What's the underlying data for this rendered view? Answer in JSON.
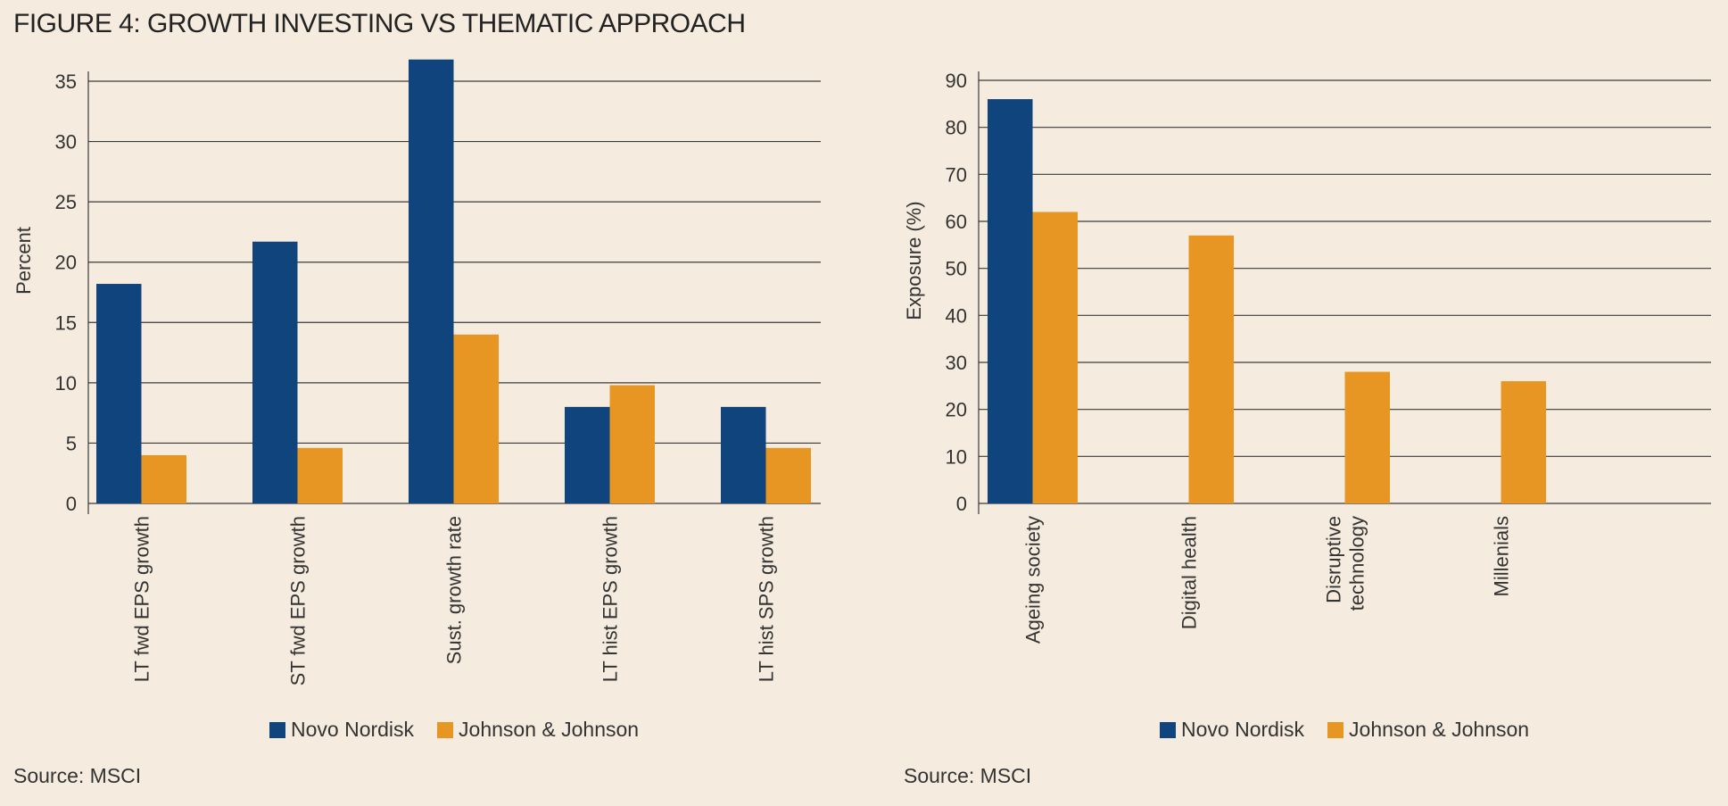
{
  "title": "FIGURE 4: GROWTH INVESTING VS THEMATIC APPROACH",
  "colors": {
    "novo": "#0F457C",
    "jnj": "#E89623",
    "grid": "#3a3a3a",
    "background": "#F5ECDF"
  },
  "chart_data": [
    {
      "type": "bar",
      "title": "",
      "xlabel": "",
      "ylabel": "Percent",
      "ylim": [
        0,
        35
      ],
      "yticks": [
        0,
        5,
        10,
        15,
        20,
        25,
        30,
        35
      ],
      "categories": [
        "LT fwd EPS growth",
        "ST fwd EPS growth",
        "Sust. growth rate",
        "LT hist EPS growth",
        "LT hist SPS growth"
      ],
      "series": [
        {
          "name": "Novo Nordisk",
          "values": [
            18.2,
            21.7,
            36.8,
            8.0,
            8.0
          ]
        },
        {
          "name": "Johnson & Johnson",
          "values": [
            4.0,
            4.6,
            14.0,
            9.8,
            4.6
          ]
        }
      ],
      "legend": "bottom-center",
      "grid": true,
      "source": "Source: MSCI"
    },
    {
      "type": "bar",
      "title": "",
      "xlabel": "",
      "ylabel": "Exposure (%)",
      "ylim": [
        0,
        90
      ],
      "yticks": [
        0,
        10,
        20,
        30,
        40,
        50,
        60,
        70,
        80,
        90
      ],
      "categories": [
        "Ageing society",
        "Digital health",
        "Disruptive technology",
        "Millenials"
      ],
      "category_lines": [
        [
          "Ageing society"
        ],
        [
          "Digital health"
        ],
        [
          "Disruptive",
          "technology"
        ],
        [
          "Millenials"
        ]
      ],
      "series": [
        {
          "name": "Novo Nordisk",
          "values": [
            86,
            0,
            0,
            0
          ]
        },
        {
          "name": "Johnson & Johnson",
          "values": [
            62,
            57,
            28,
            26
          ]
        }
      ],
      "legend": "bottom-center",
      "grid": true,
      "source": "Source: MSCI"
    }
  ]
}
